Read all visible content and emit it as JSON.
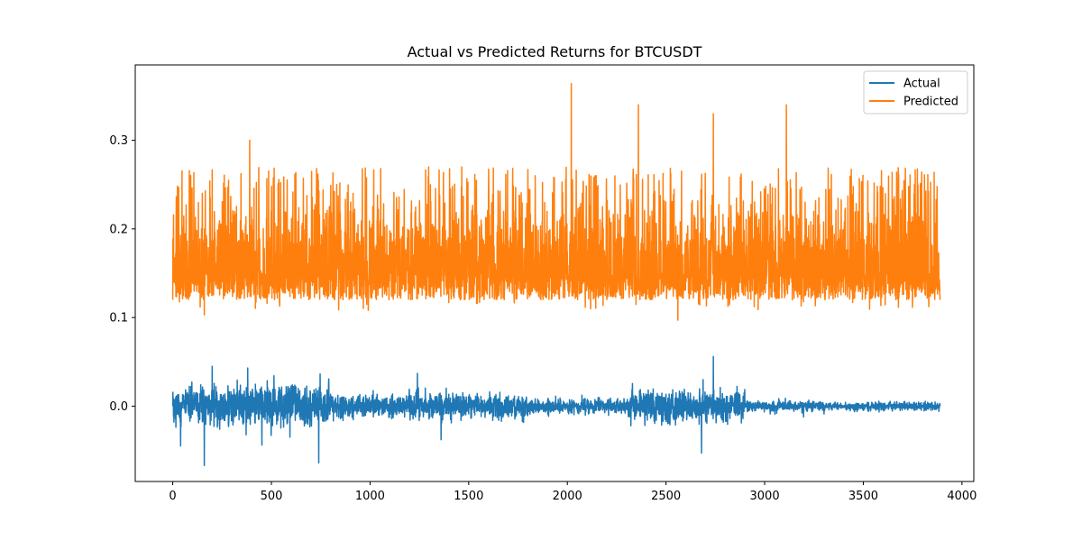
{
  "chart_data": {
    "type": "line",
    "title": "Actual vs Predicted Returns for BTCUSDT",
    "xlabel": "",
    "ylabel": "",
    "xlim": [
      -190,
      4060
    ],
    "ylim": [
      -0.085,
      0.385
    ],
    "x_ticks": [
      0,
      500,
      1000,
      1500,
      2000,
      2500,
      3000,
      3500,
      4000
    ],
    "x_tick_labels": [
      "0",
      "500",
      "1000",
      "1500",
      "2000",
      "2500",
      "3000",
      "3500",
      "4000"
    ],
    "y_ticks": [
      0.0,
      0.1,
      0.2,
      0.3
    ],
    "y_tick_labels": [
      "0.0",
      "0.1",
      "0.2",
      "0.3"
    ],
    "grid": false,
    "legend": "top-right",
    "n_points": 3890,
    "series": [
      {
        "name": "Actual",
        "color": "#1f77b4",
        "description_of_values": "noisy series centered near 0.0",
        "key_points": [
          {
            "x": 0,
            "y": 0.0
          },
          {
            "x": 40,
            "y": -0.045
          },
          {
            "x": 160,
            "y": -0.067
          },
          {
            "x": 200,
            "y": 0.045
          },
          {
            "x": 380,
            "y": 0.043
          },
          {
            "x": 740,
            "y": -0.064
          },
          {
            "x": 1240,
            "y": 0.037
          },
          {
            "x": 1360,
            "y": -0.038
          },
          {
            "x": 2740,
            "y": 0.056
          },
          {
            "x": 2680,
            "y": -0.053
          },
          {
            "x": 3890,
            "y": 0.0
          }
        ]
      },
      {
        "name": "Predicted",
        "color": "#ff7f0e",
        "description_of_values": "noisy series mostly between 0.12 and 0.27",
        "key_points": [
          {
            "x": 0,
            "y": 0.12
          },
          {
            "x": 160,
            "y": 0.103
          },
          {
            "x": 390,
            "y": 0.3
          },
          {
            "x": 2020,
            "y": 0.364
          },
          {
            "x": 2360,
            "y": 0.34
          },
          {
            "x": 2560,
            "y": 0.097
          },
          {
            "x": 2740,
            "y": 0.33
          },
          {
            "x": 3110,
            "y": 0.34
          },
          {
            "x": 3890,
            "y": 0.12
          }
        ]
      }
    ]
  }
}
